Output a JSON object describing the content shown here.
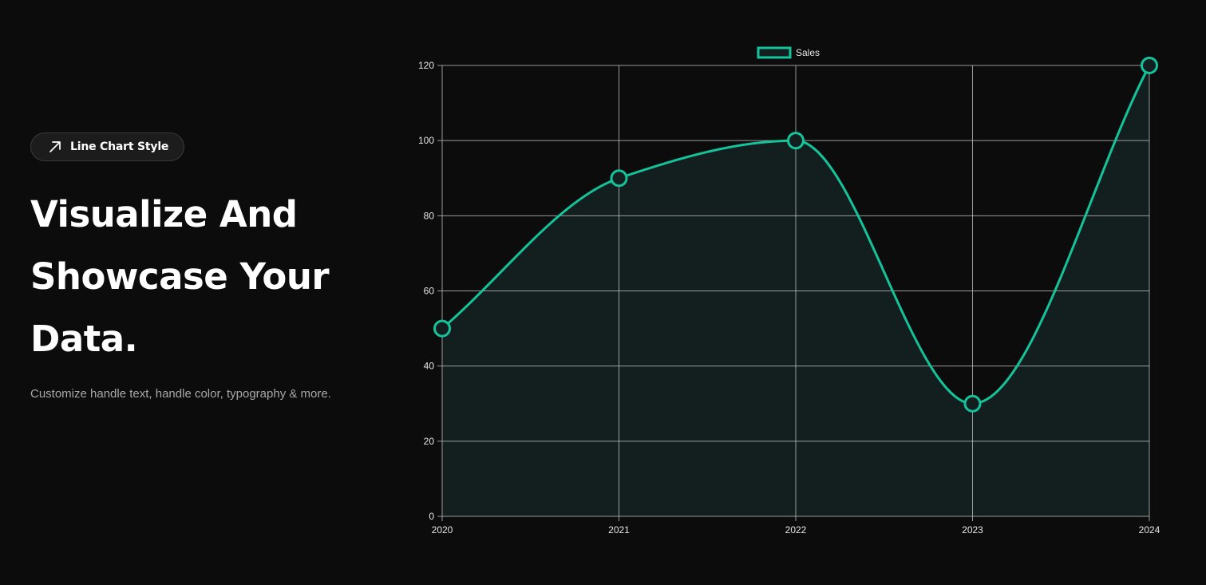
{
  "badge": {
    "icon": "arrow-up-right-icon",
    "label": "Line Chart Style"
  },
  "hero": {
    "headline_lines": [
      "Visualize And",
      "Showcase Your",
      "Data."
    ],
    "subtitle": "Customize handle text, handle color, typography & more."
  },
  "colors": {
    "background": "#0c0c0c",
    "line": "#14c39a",
    "fill": "#131e1e",
    "grid": "#c8c8c8",
    "tick_text": "#e6e6e6",
    "subtitle_text": "#a8a8a8"
  },
  "chart_data": {
    "type": "line",
    "x": [
      "2020",
      "2021",
      "2022",
      "2023",
      "2024"
    ],
    "series": [
      {
        "name": "Sales",
        "values": [
          50,
          90,
          100,
          30,
          120
        ]
      }
    ],
    "title": "",
    "xlabel": "",
    "ylabel": "",
    "ylim": [
      0,
      120
    ],
    "yticks": [
      0,
      20,
      40,
      60,
      80,
      100,
      120
    ],
    "grid": true,
    "legend": "top-center",
    "fill": true,
    "smooth": true
  }
}
